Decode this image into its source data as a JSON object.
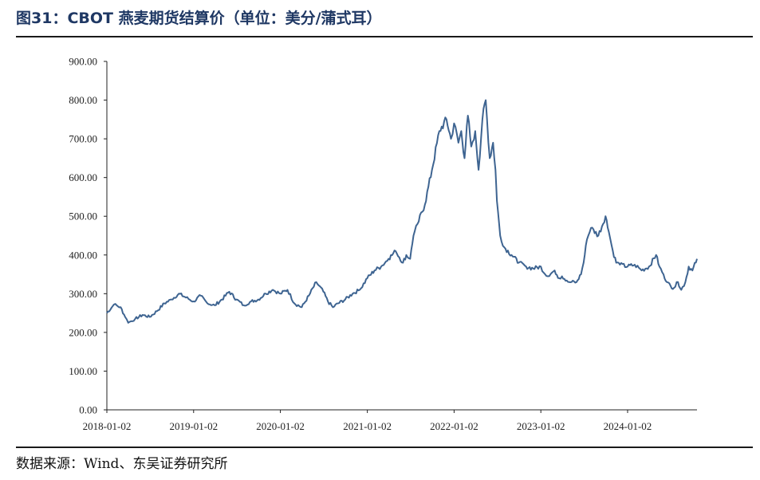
{
  "figure": {
    "title": "图31：CBOT 燕麦期货结算价（单位：美分/蒲式耳）",
    "source": "数据来源：Wind、东吴证券研究所"
  },
  "chart_data": {
    "type": "line",
    "title": "",
    "xlabel": "",
    "ylabel": "",
    "ylim": [
      0,
      900
    ],
    "yticks": [
      "0.00",
      "100.00",
      "200.00",
      "300.00",
      "400.00",
      "500.00",
      "600.00",
      "700.00",
      "800.00",
      "900.00"
    ],
    "xlim": [
      "2018-01-02",
      "2024-10-20"
    ],
    "xticks": [
      "2018-01-02",
      "2019-01-02",
      "2020-01-02",
      "2021-01-02",
      "2022-01-02",
      "2023-01-02",
      "2024-01-02"
    ],
    "grid": false,
    "legend": "none",
    "color": "#3e6491",
    "series": [
      {
        "x": [
          "2018-01-02",
          "2018-02-01",
          "2018-03-01",
          "2018-03-20",
          "2018-04-02",
          "2018-05-01",
          "2018-06-01",
          "2018-07-01",
          "2018-08-01",
          "2018-09-01",
          "2018-10-01",
          "2018-11-01",
          "2018-12-01",
          "2019-01-02",
          "2019-02-01",
          "2019-03-01",
          "2019-04-01",
          "2019-05-01",
          "2019-06-01",
          "2019-07-01",
          "2019-08-01",
          "2019-09-01",
          "2019-10-01",
          "2019-11-01",
          "2019-12-01",
          "2020-01-02",
          "2020-02-01",
          "2020-03-01",
          "2020-04-01",
          "2020-05-01",
          "2020-06-01",
          "2020-07-01",
          "2020-07-20",
          "2020-08-10",
          "2020-09-01",
          "2020-10-01",
          "2020-11-01",
          "2020-12-01",
          "2021-01-02",
          "2021-02-01",
          "2021-03-01",
          "2021-04-01",
          "2021-05-01",
          "2021-06-01",
          "2021-06-15",
          "2021-07-01",
          "2021-07-15",
          "2021-08-01",
          "2021-09-01",
          "2021-10-01",
          "2021-11-01",
          "2021-12-01",
          "2021-12-20",
          "2022-01-02",
          "2022-01-20",
          "2022-02-01",
          "2022-02-15",
          "2022-03-01",
          "2022-03-15",
          "2022-04-01",
          "2022-04-15",
          "2022-05-01",
          "2022-05-15",
          "2022-06-01",
          "2022-06-15",
          "2022-06-25",
          "2022-07-01",
          "2022-07-15",
          "2022-08-01",
          "2022-09-01",
          "2022-10-01",
          "2022-11-01",
          "2022-12-01",
          "2023-01-02",
          "2023-01-20",
          "2023-02-01",
          "2023-03-01",
          "2023-03-20",
          "2023-04-01",
          "2023-05-01",
          "2023-06-01",
          "2023-06-20",
          "2023-07-01",
          "2023-07-15",
          "2023-08-01",
          "2023-09-01",
          "2023-10-01",
          "2023-10-15",
          "2023-11-01",
          "2023-11-15",
          "2023-12-01",
          "2024-01-02",
          "2024-02-01",
          "2024-03-01",
          "2024-04-01",
          "2024-05-01",
          "2024-05-15",
          "2024-06-01",
          "2024-06-15",
          "2024-07-01",
          "2024-07-15",
          "2024-08-01",
          "2024-08-15",
          "2024-09-01",
          "2024-09-15",
          "2024-10-01",
          "2024-10-20"
        ],
        "y": [
          250,
          272,
          265,
          240,
          225,
          235,
          245,
          240,
          255,
          275,
          285,
          300,
          290,
          280,
          295,
          275,
          270,
          285,
          305,
          285,
          270,
          280,
          285,
          300,
          310,
          300,
          310,
          275,
          265,
          295,
          330,
          305,
          280,
          265,
          275,
          285,
          300,
          310,
          340,
          360,
          370,
          390,
          410,
          380,
          400,
          390,
          450,
          480,
          530,
          620,
          720,
          750,
          700,
          740,
          690,
          720,
          650,
          760,
          680,
          720,
          620,
          750,
          800,
          650,
          690,
          620,
          540,
          450,
          420,
          400,
          380,
          370,
          365,
          370,
          350,
          345,
          360,
          340,
          345,
          330,
          330,
          350,
          380,
          440,
          470,
          450,
          500,
          460,
          410,
          380,
          375,
          370,
          375,
          360,
          370,
          400,
          370,
          350,
          330,
          320,
          315,
          330,
          310,
          330,
          370,
          360,
          390
        ]
      }
    ]
  }
}
